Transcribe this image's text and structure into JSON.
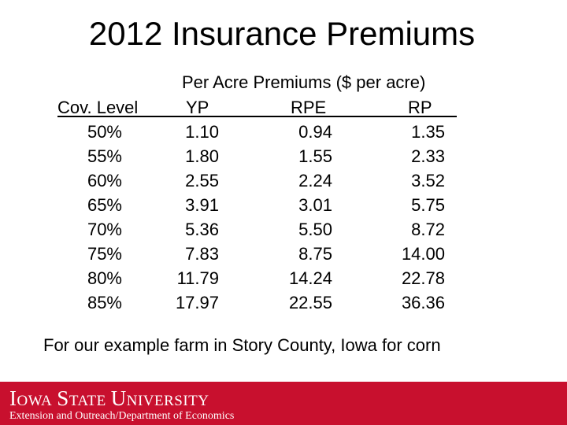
{
  "title": "2012 Insurance Premiums",
  "subtitle": "Per Acre Premiums ($ per acre)",
  "table": {
    "headers": {
      "coverage": "Cov. Level",
      "yp": "YP",
      "rpe": "RPE",
      "rp": "RP"
    },
    "rows": [
      {
        "coverage": "50%",
        "yp": "1.10",
        "rpe": "0.94",
        "rp": "1.35"
      },
      {
        "coverage": "55%",
        "yp": "1.80",
        "rpe": "1.55",
        "rp": "2.33"
      },
      {
        "coverage": "60%",
        "yp": "2.55",
        "rpe": "2.24",
        "rp": "3.52"
      },
      {
        "coverage": "65%",
        "yp": "3.91",
        "rpe": "3.01",
        "rp": "5.75"
      },
      {
        "coverage": "70%",
        "yp": "5.36",
        "rpe": "5.50",
        "rp": "8.72"
      },
      {
        "coverage": "75%",
        "yp": "7.83",
        "rpe": "8.75",
        "rp": "14.00"
      },
      {
        "coverage": "80%",
        "yp": "11.79",
        "rpe": "14.24",
        "rp": "22.78"
      },
      {
        "coverage": "85%",
        "yp": "17.97",
        "rpe": "22.55",
        "rp": "36.36"
      }
    ]
  },
  "footnote": "For our example farm in Story County, Iowa for corn",
  "footer": {
    "university": "Iowa State University",
    "department": "Extension and Outreach/Department of Economics",
    "bar_color": "#c8102e"
  }
}
